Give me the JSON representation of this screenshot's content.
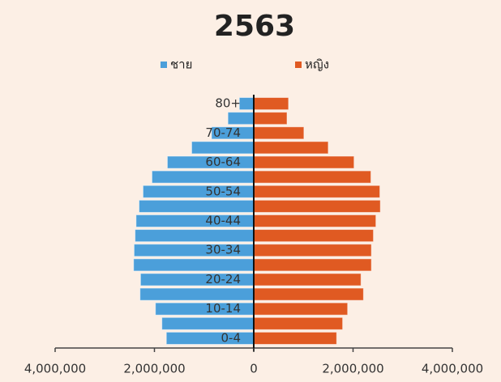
{
  "chart_data": {
    "type": "pyramid",
    "title": "2563",
    "categories": [
      "0-4",
      null,
      "10-14",
      null,
      "20-24",
      null,
      "30-34",
      null,
      "40-44",
      null,
      "50-54",
      null,
      "60-64",
      null,
      "70-74",
      null,
      "80+"
    ],
    "series": [
      {
        "name": "ชาย",
        "color": "#4b9fda",
        "side": "left",
        "values": [
          1760000,
          1850000,
          1980000,
          2290000,
          2280000,
          2420000,
          2410000,
          2390000,
          2370000,
          2310000,
          2230000,
          2050000,
          1740000,
          1250000,
          850000,
          520000,
          290000
        ]
      },
      {
        "name": "หญิง",
        "color": "#e05a22",
        "side": "right",
        "values": [
          1670000,
          1790000,
          1890000,
          2210000,
          2160000,
          2370000,
          2370000,
          2410000,
          2460000,
          2550000,
          2540000,
          2360000,
          2020000,
          1500000,
          1010000,
          670000,
          700000
        ]
      }
    ],
    "xlim": [
      -4000000,
      4000000
    ],
    "xticks": [
      {
        "value": -4000000,
        "label": "4,000,000"
      },
      {
        "value": -2000000,
        "label": "2,000,000"
      },
      0,
      {
        "value": 2000000,
        "label": "2,000,000"
      },
      {
        "value": 4000000,
        "label": "4,000,000"
      }
    ]
  }
}
